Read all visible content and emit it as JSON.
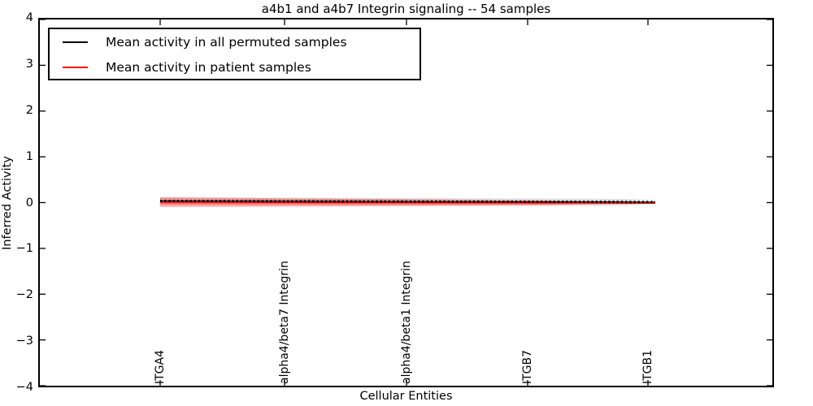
{
  "chart_data": {
    "type": "line",
    "title": "a4b1 and a4b7 Integrin signaling -- 54 samples",
    "xlabel": "Cellular Entities",
    "ylabel": "Inferred Activity",
    "ylim": [
      -4,
      4
    ],
    "yticks": [
      4,
      3,
      2,
      1,
      0,
      -1,
      -2,
      -3,
      -4
    ],
    "x_tick_labels": [
      "ITGA4",
      "alpha4/beta7 Integrin",
      "alpha4/beta1 Integrin",
      "ITGB7",
      "ITGB1"
    ],
    "grid": false,
    "legend_position": "upper left",
    "series": [
      {
        "name": "Mean activity in all permuted samples",
        "color": "#000000",
        "band_color": "#000000",
        "band_alpha": 0.13,
        "mean_start": 0.035,
        "mean_end": 0.01,
        "band_halfwidth_start": 0.08,
        "band_halfwidth_end": 0.07
      },
      {
        "name": "Mean activity in patient samples",
        "color": "#ff0000",
        "band_color": "#ff0000",
        "band_alpha": 0.32,
        "mean_start": 0.01,
        "mean_end": -0.012,
        "band_halfwidth_start": 0.105,
        "band_halfwidth_end": 0.045
      }
    ]
  }
}
